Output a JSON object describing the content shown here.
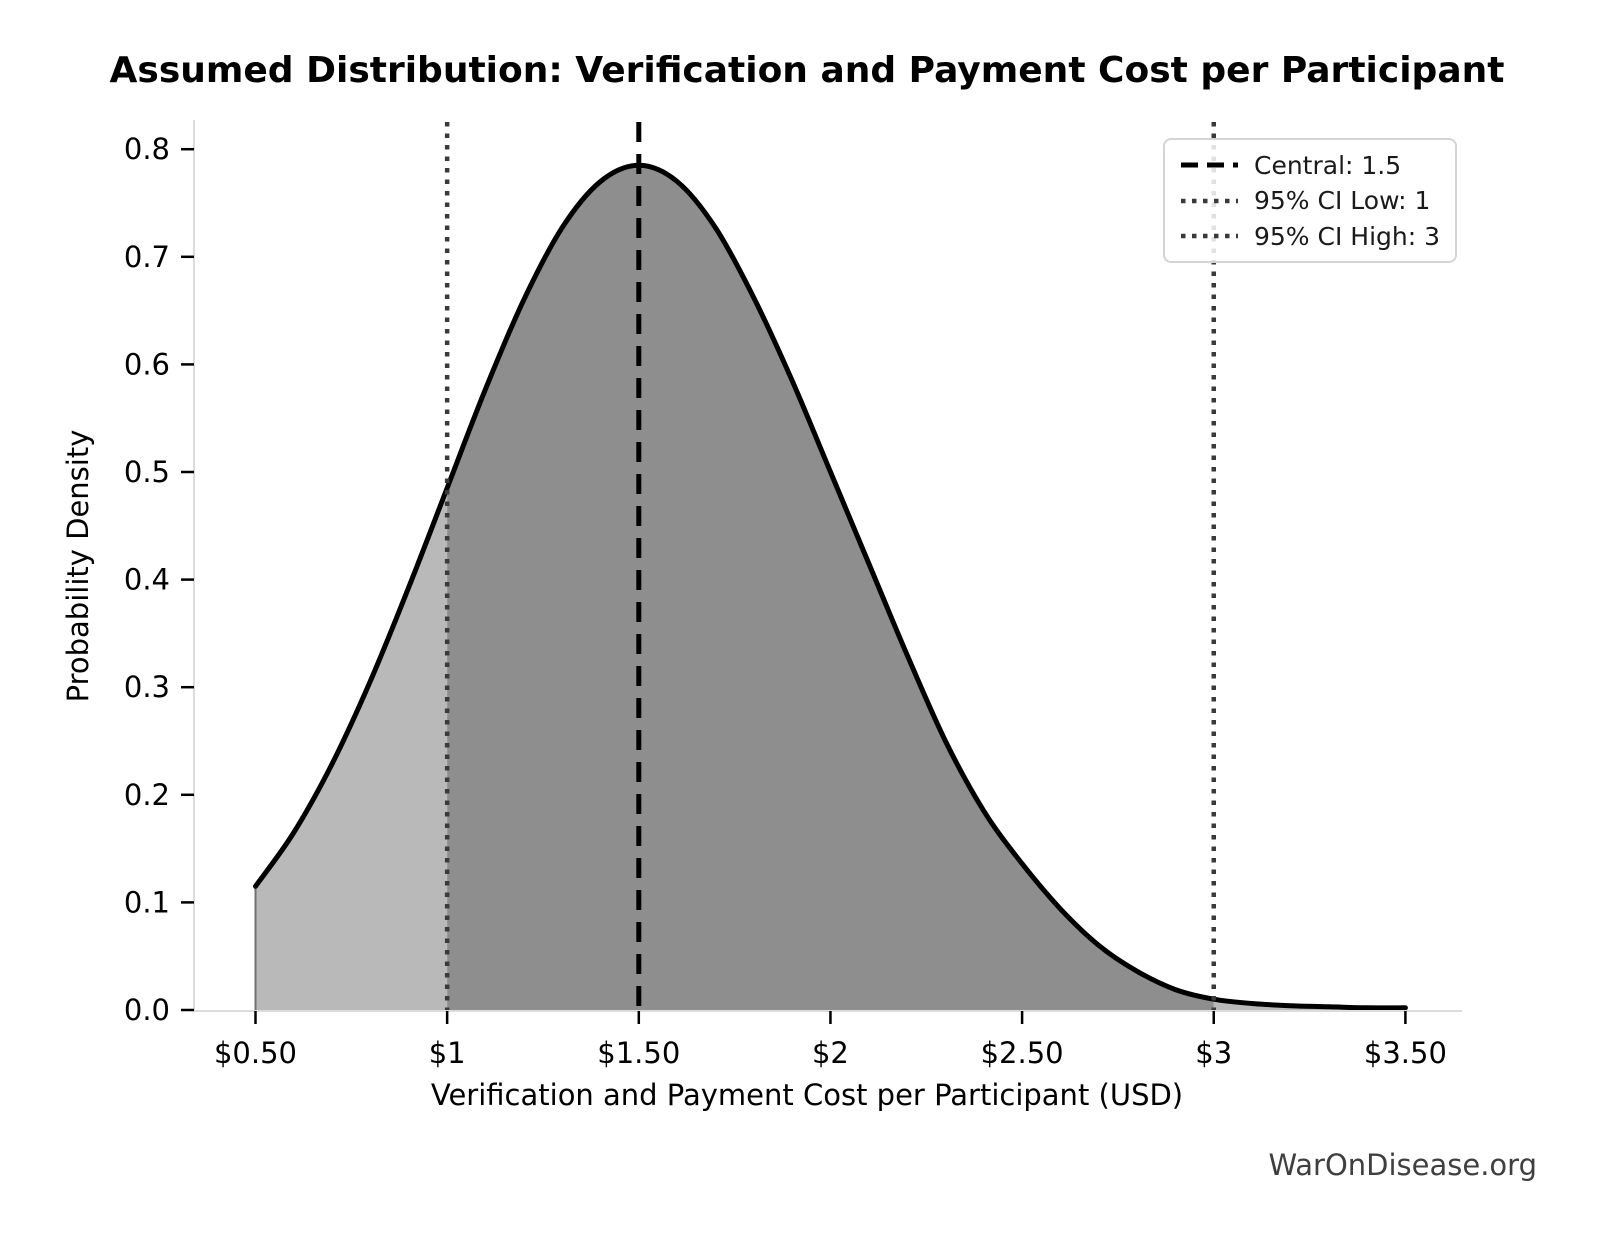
{
  "chart_data": {
    "type": "area",
    "title": "Assumed Distribution: Verification and Payment Cost per Participant",
    "xlabel": "Verification and Payment Cost per Participant (USD)",
    "ylabel": "Probability Density",
    "watermark": "WarOnDisease.org",
    "xlim": [
      0.34,
      3.66
    ],
    "ylim": [
      0,
      0.83
    ],
    "grid": false,
    "legend_position": "upper right",
    "x_ticks": [
      {
        "value": 0.5,
        "label": "$0.50"
      },
      {
        "value": 1.0,
        "label": "$1"
      },
      {
        "value": 1.5,
        "label": "$1.50"
      },
      {
        "value": 2.0,
        "label": "$2"
      },
      {
        "value": 2.5,
        "label": "$2.50"
      },
      {
        "value": 3.0,
        "label": "$3"
      },
      {
        "value": 3.5,
        "label": "$3.50"
      }
    ],
    "y_ticks": [
      {
        "value": 0.0,
        "label": "0.0"
      },
      {
        "value": 0.1,
        "label": "0.1"
      },
      {
        "value": 0.2,
        "label": "0.2"
      },
      {
        "value": 0.3,
        "label": "0.3"
      },
      {
        "value": 0.4,
        "label": "0.4"
      },
      {
        "value": 0.5,
        "label": "0.5"
      },
      {
        "value": 0.6,
        "label": "0.6"
      },
      {
        "value": 0.7,
        "label": "0.7"
      },
      {
        "value": 0.8,
        "label": "0.8"
      }
    ],
    "curve": {
      "x": [
        0.5,
        0.6,
        0.7,
        0.8,
        0.9,
        1.0,
        1.1,
        1.2,
        1.3,
        1.4,
        1.5,
        1.6,
        1.7,
        1.8,
        1.9,
        2.0,
        2.1,
        2.2,
        2.3,
        2.4,
        2.5,
        2.6,
        2.7,
        2.8,
        2.9,
        3.0,
        3.1,
        3.2,
        3.3,
        3.4,
        3.5
      ],
      "density": [
        0.115,
        0.165,
        0.229,
        0.306,
        0.393,
        0.485,
        0.577,
        0.66,
        0.727,
        0.77,
        0.785,
        0.77,
        0.727,
        0.662,
        0.585,
        0.5,
        0.415,
        0.33,
        0.25,
        0.185,
        0.136,
        0.094,
        0.06,
        0.036,
        0.019,
        0.01,
        0.006,
        0.004,
        0.003,
        0.002,
        0.002
      ]
    },
    "markers": [
      {
        "id": "central",
        "style": "dashed",
        "x": 1.5,
        "legend_label": "Central: 1.5",
        "color": "#000000"
      },
      {
        "id": "ci_low",
        "style": "dotted",
        "x": 1.0,
        "legend_label": "95% CI Low: 1",
        "color": "#3a3a3a"
      },
      {
        "id": "ci_high",
        "style": "dotted",
        "x": 3.0,
        "legend_label": "95% CI High: 3",
        "color": "#3a3a3a"
      }
    ],
    "ci_region": {
      "low": 1.0,
      "high": 3.0,
      "central": 1.5
    },
    "colors": {
      "curve": "#000000",
      "fill_ci": "#8e8e8e",
      "fill_tail": "#b9b9b9",
      "fill_edge": "#707070",
      "marker_dashed": "#000000",
      "marker_dotted": "#3a3a3a",
      "spine": "#dcdcdc",
      "tick": "#000000",
      "tick_label": "#000000",
      "watermark": "#3f3f3f",
      "legend_border": "#d4d4d4"
    }
  }
}
